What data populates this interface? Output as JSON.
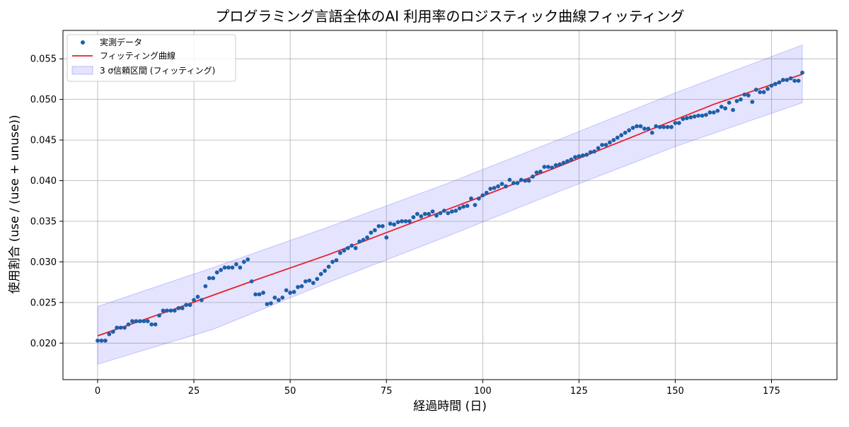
{
  "chart_data": {
    "type": "scatter",
    "title": "プログラミング言語全体のAI 利用率のロジスティック曲線フィッティング",
    "xlabel": "経過時間 (日)",
    "ylabel": "使用割合 (use / (use + unuse))",
    "xlim": [
      -9,
      192
    ],
    "ylim": [
      0.0155,
      0.0585
    ],
    "xticks": [
      0,
      25,
      50,
      75,
      100,
      125,
      150,
      175
    ],
    "yticks": [
      0.02,
      0.025,
      0.03,
      0.035,
      0.04,
      0.045,
      0.05,
      0.055
    ],
    "ytick_labels": [
      "0.020",
      "0.025",
      "0.030",
      "0.035",
      "0.040",
      "0.045",
      "0.050",
      "0.055"
    ],
    "grid": true,
    "legend_position": "top-left",
    "legend": [
      {
        "label": "実測データ",
        "kind": "marker",
        "color": "#1f5fa8"
      },
      {
        "label": "フィッティング曲線",
        "kind": "line",
        "color": "#e8202a"
      },
      {
        "label": "3 σ信頼区間 (フィッティング)",
        "kind": "band",
        "color": "#6a6aff"
      }
    ],
    "colors": {
      "observed": "#1f5fa8",
      "fit": "#e8202a",
      "band": "#6a6aff"
    },
    "fit": {
      "x": [
        0,
        20,
        40,
        60,
        80,
        100,
        120,
        140,
        160,
        183
      ],
      "y": [
        0.0209,
        0.0242,
        0.0276,
        0.0309,
        0.0345,
        0.0381,
        0.0418,
        0.0456,
        0.0494,
        0.0531
      ]
    },
    "band": {
      "x": [
        0,
        30,
        60,
        90,
        120,
        150,
        183
      ],
      "upper": [
        0.0245,
        0.0293,
        0.0343,
        0.0395,
        0.0451,
        0.0508,
        0.0567
      ],
      "lower": [
        0.0174,
        0.0217,
        0.0275,
        0.033,
        0.0387,
        0.0442,
        0.0496
      ]
    },
    "observed": [
      [
        0,
        0.0203
      ],
      [
        1,
        0.0203
      ],
      [
        2,
        0.0203
      ],
      [
        3,
        0.0211
      ],
      [
        4,
        0.0214
      ],
      [
        5,
        0.0219
      ],
      [
        6,
        0.0219
      ],
      [
        7,
        0.0219
      ],
      [
        8,
        0.0223
      ],
      [
        9,
        0.0227
      ],
      [
        10,
        0.0227
      ],
      [
        11,
        0.0227
      ],
      [
        12,
        0.0227
      ],
      [
        13,
        0.0227
      ],
      [
        14,
        0.0223
      ],
      [
        15,
        0.0223
      ],
      [
        16,
        0.0234
      ],
      [
        17,
        0.024
      ],
      [
        18,
        0.024
      ],
      [
        19,
        0.024
      ],
      [
        20,
        0.024
      ],
      [
        21,
        0.0243
      ],
      [
        22,
        0.0243
      ],
      [
        23,
        0.0247
      ],
      [
        24,
        0.0247
      ],
      [
        25,
        0.0253
      ],
      [
        26,
        0.0257
      ],
      [
        27,
        0.0253
      ],
      [
        28,
        0.027
      ],
      [
        29,
        0.028
      ],
      [
        30,
        0.028
      ],
      [
        31,
        0.0287
      ],
      [
        32,
        0.029
      ],
      [
        33,
        0.0293
      ],
      [
        34,
        0.0293
      ],
      [
        35,
        0.0293
      ],
      [
        36,
        0.0297
      ],
      [
        37,
        0.0293
      ],
      [
        38,
        0.03
      ],
      [
        39,
        0.0303
      ],
      [
        40,
        0.0276
      ],
      [
        41,
        0.026
      ],
      [
        42,
        0.026
      ],
      [
        43,
        0.0262
      ],
      [
        44,
        0.0248
      ],
      [
        45,
        0.0249
      ],
      [
        46,
        0.0256
      ],
      [
        47,
        0.0253
      ],
      [
        48,
        0.0256
      ],
      [
        49,
        0.0265
      ],
      [
        50,
        0.0262
      ],
      [
        51,
        0.0263
      ],
      [
        52,
        0.0269
      ],
      [
        53,
        0.027
      ],
      [
        54,
        0.0276
      ],
      [
        55,
        0.0277
      ],
      [
        56,
        0.0274
      ],
      [
        57,
        0.0279
      ],
      [
        58,
        0.0285
      ],
      [
        59,
        0.0289
      ],
      [
        60,
        0.0294
      ],
      [
        61,
        0.03
      ],
      [
        62,
        0.0302
      ],
      [
        63,
        0.0311
      ],
      [
        64,
        0.0314
      ],
      [
        65,
        0.0317
      ],
      [
        66,
        0.032
      ],
      [
        67,
        0.0317
      ],
      [
        68,
        0.0325
      ],
      [
        69,
        0.0327
      ],
      [
        70,
        0.033
      ],
      [
        71,
        0.0336
      ],
      [
        72,
        0.0339
      ],
      [
        73,
        0.0344
      ],
      [
        74,
        0.0344
      ],
      [
        75,
        0.033
      ],
      [
        76,
        0.0347
      ],
      [
        77,
        0.0346
      ],
      [
        78,
        0.0349
      ],
      [
        79,
        0.035
      ],
      [
        80,
        0.035
      ],
      [
        81,
        0.035
      ],
      [
        82,
        0.0355
      ],
      [
        83,
        0.0359
      ],
      [
        84,
        0.0356
      ],
      [
        85,
        0.0359
      ],
      [
        86,
        0.0359
      ],
      [
        87,
        0.0362
      ],
      [
        88,
        0.0357
      ],
      [
        89,
        0.036
      ],
      [
        90,
        0.0363
      ],
      [
        91,
        0.036
      ],
      [
        92,
        0.0362
      ],
      [
        93,
        0.0363
      ],
      [
        94,
        0.0366
      ],
      [
        95,
        0.0368
      ],
      [
        96,
        0.0369
      ],
      [
        97,
        0.0378
      ],
      [
        98,
        0.037
      ],
      [
        99,
        0.0378
      ],
      [
        100,
        0.0382
      ],
      [
        101,
        0.0385
      ],
      [
        102,
        0.039
      ],
      [
        103,
        0.0391
      ],
      [
        104,
        0.0393
      ],
      [
        105,
        0.0396
      ],
      [
        106,
        0.0393
      ],
      [
        107,
        0.0401
      ],
      [
        108,
        0.0397
      ],
      [
        109,
        0.0397
      ],
      [
        110,
        0.0401
      ],
      [
        111,
        0.04
      ],
      [
        112,
        0.04
      ],
      [
        113,
        0.0405
      ],
      [
        114,
        0.041
      ],
      [
        115,
        0.0411
      ],
      [
        116,
        0.0417
      ],
      [
        117,
        0.0417
      ],
      [
        118,
        0.0416
      ],
      [
        119,
        0.0419
      ],
      [
        120,
        0.042
      ],
      [
        121,
        0.0422
      ],
      [
        122,
        0.0424
      ],
      [
        123,
        0.0426
      ],
      [
        124,
        0.0429
      ],
      [
        125,
        0.043
      ],
      [
        126,
        0.0431
      ],
      [
        127,
        0.0432
      ],
      [
        128,
        0.0435
      ],
      [
        129,
        0.0436
      ],
      [
        130,
        0.044
      ],
      [
        131,
        0.0444
      ],
      [
        132,
        0.0444
      ],
      [
        133,
        0.0447
      ],
      [
        134,
        0.045
      ],
      [
        135,
        0.0453
      ],
      [
        136,
        0.0456
      ],
      [
        137,
        0.0459
      ],
      [
        138,
        0.0462
      ],
      [
        139,
        0.0465
      ],
      [
        140,
        0.0467
      ],
      [
        141,
        0.0467
      ],
      [
        142,
        0.0464
      ],
      [
        143,
        0.0464
      ],
      [
        144,
        0.0459
      ],
      [
        145,
        0.0467
      ],
      [
        146,
        0.0466
      ],
      [
        147,
        0.0466
      ],
      [
        148,
        0.0466
      ],
      [
        149,
        0.0466
      ],
      [
        150,
        0.0471
      ],
      [
        151,
        0.0471
      ],
      [
        152,
        0.0476
      ],
      [
        153,
        0.0477
      ],
      [
        154,
        0.0478
      ],
      [
        155,
        0.0479
      ],
      [
        156,
        0.048
      ],
      [
        157,
        0.048
      ],
      [
        158,
        0.0481
      ],
      [
        159,
        0.0484
      ],
      [
        160,
        0.0484
      ],
      [
        161,
        0.0486
      ],
      [
        162,
        0.0491
      ],
      [
        163,
        0.0489
      ],
      [
        164,
        0.0496
      ],
      [
        165,
        0.0487
      ],
      [
        166,
        0.0498
      ],
      [
        167,
        0.05
      ],
      [
        168,
        0.0506
      ],
      [
        169,
        0.0505
      ],
      [
        170,
        0.0497
      ],
      [
        171,
        0.0512
      ],
      [
        172,
        0.0509
      ],
      [
        173,
        0.0509
      ],
      [
        174,
        0.0513
      ],
      [
        175,
        0.0517
      ],
      [
        176,
        0.0519
      ],
      [
        177,
        0.0521
      ],
      [
        178,
        0.0524
      ],
      [
        179,
        0.0524
      ],
      [
        180,
        0.0526
      ],
      [
        181,
        0.0523
      ],
      [
        182,
        0.0523
      ],
      [
        183,
        0.0533
      ]
    ]
  }
}
